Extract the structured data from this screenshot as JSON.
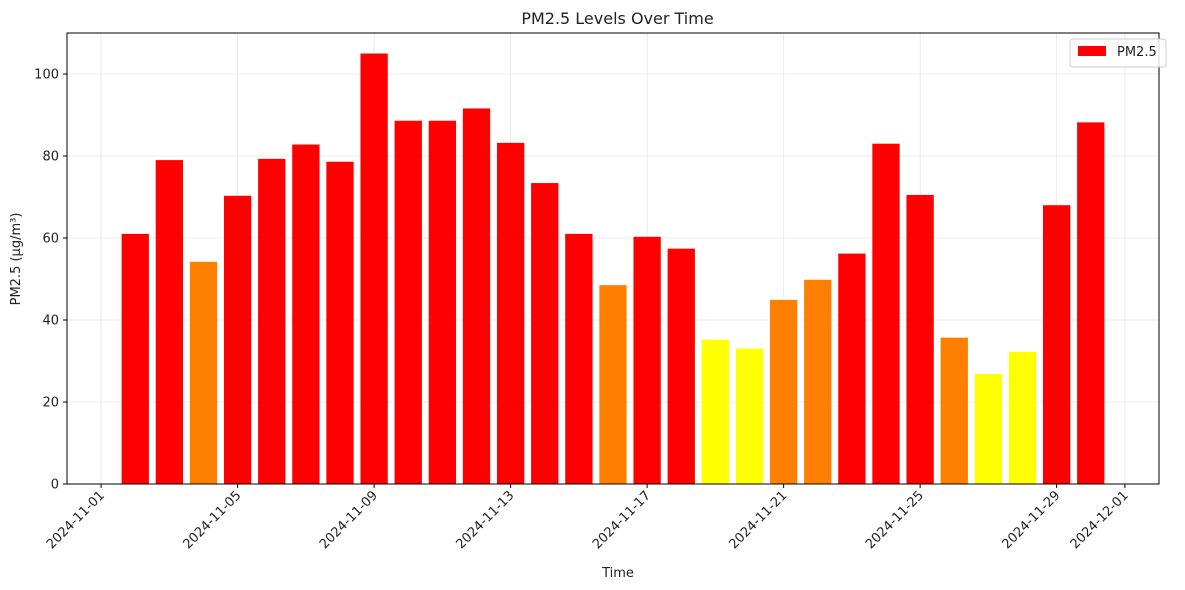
{
  "chart_data": {
    "type": "bar",
    "title": "PM2.5 Levels Over Time",
    "xlabel": "Time",
    "ylabel": "PM2.5 (µg/m³)",
    "ylim": [
      0,
      110
    ],
    "xlim": [
      "2024-10-31",
      "2024-12-02"
    ],
    "grid": true,
    "legend_position": "top-right",
    "legend": [
      {
        "label": "PM2.5",
        "color": "#ff0000"
      }
    ],
    "y_ticks": [
      0,
      20,
      40,
      60,
      80,
      100
    ],
    "x_ticks": [
      "2024-11-01",
      "2024-11-05",
      "2024-11-09",
      "2024-11-13",
      "2024-11-17",
      "2024-11-21",
      "2024-11-25",
      "2024-11-29",
      "2024-12-01"
    ],
    "colors": {
      "red": "#ff0000",
      "orange": "#ff7f00",
      "yellow": "#ffff00"
    },
    "bars": [
      {
        "date": "2024-11-02",
        "value": 61,
        "color": "#ff0000"
      },
      {
        "date": "2024-11-03",
        "value": 79,
        "color": "#ff0000"
      },
      {
        "date": "2024-11-04",
        "value": 54.2,
        "color": "#ff7f00"
      },
      {
        "date": "2024-11-05",
        "value": 70.3,
        "color": "#ff0000"
      },
      {
        "date": "2024-11-06",
        "value": 79.3,
        "color": "#ff0000"
      },
      {
        "date": "2024-11-07",
        "value": 82.8,
        "color": "#ff0000"
      },
      {
        "date": "2024-11-08",
        "value": 78.6,
        "color": "#ff0000"
      },
      {
        "date": "2024-11-09",
        "value": 105,
        "color": "#ff0000"
      },
      {
        "date": "2024-11-10",
        "value": 88.6,
        "color": "#ff0000"
      },
      {
        "date": "2024-11-11",
        "value": 88.6,
        "color": "#ff0000"
      },
      {
        "date": "2024-11-12",
        "value": 91.6,
        "color": "#ff0000"
      },
      {
        "date": "2024-11-13",
        "value": 83.2,
        "color": "#ff0000"
      },
      {
        "date": "2024-11-14",
        "value": 73.4,
        "color": "#ff0000"
      },
      {
        "date": "2024-11-15",
        "value": 61,
        "color": "#ff0000"
      },
      {
        "date": "2024-11-16",
        "value": 48.5,
        "color": "#ff7f00"
      },
      {
        "date": "2024-11-17",
        "value": 60.3,
        "color": "#ff0000"
      },
      {
        "date": "2024-11-18",
        "value": 57.4,
        "color": "#ff0000"
      },
      {
        "date": "2024-11-19",
        "value": 35.2,
        "color": "#ffff00"
      },
      {
        "date": "2024-11-20",
        "value": 33,
        "color": "#ffff00"
      },
      {
        "date": "2024-11-21",
        "value": 44.9,
        "color": "#ff7f00"
      },
      {
        "date": "2024-11-22",
        "value": 49.8,
        "color": "#ff7f00"
      },
      {
        "date": "2024-11-23",
        "value": 56.2,
        "color": "#ff0000"
      },
      {
        "date": "2024-11-24",
        "value": 83,
        "color": "#ff0000"
      },
      {
        "date": "2024-11-25",
        "value": 70.5,
        "color": "#ff0000"
      },
      {
        "date": "2024-11-26",
        "value": 35.7,
        "color": "#ff7f00"
      },
      {
        "date": "2024-11-27",
        "value": 26.8,
        "color": "#ffff00"
      },
      {
        "date": "2024-11-28",
        "value": 32.2,
        "color": "#ffff00"
      },
      {
        "date": "2024-11-29",
        "value": 68,
        "color": "#ff0000"
      },
      {
        "date": "2024-11-30",
        "value": 88.2,
        "color": "#ff0000"
      }
    ]
  }
}
